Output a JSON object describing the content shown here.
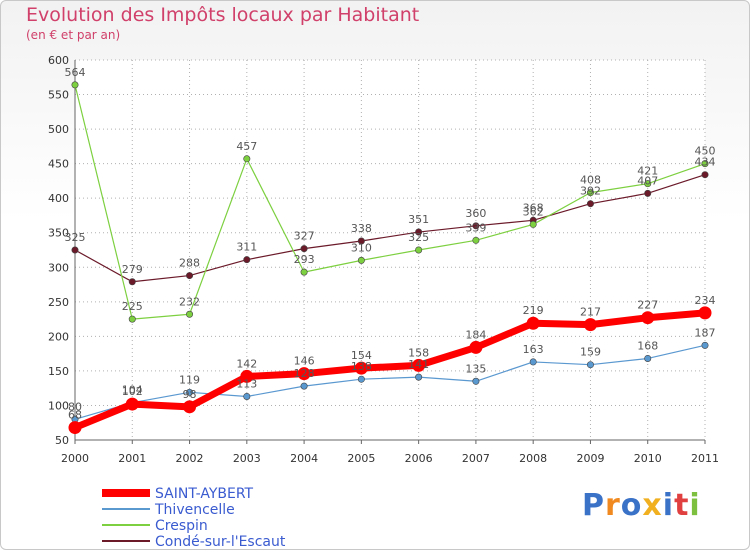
{
  "chart_data": {
    "type": "line",
    "title": "Evolution des Impôts locaux par Habitant",
    "subtitle": "(en € et par an)",
    "x": [
      "2000",
      "2001",
      "2002",
      "2003",
      "2004",
      "2005",
      "2006",
      "2007",
      "2008",
      "2009",
      "2010",
      "2011"
    ],
    "ylim": [
      50,
      600
    ],
    "yticks": [
      50,
      100,
      150,
      200,
      250,
      300,
      350,
      400,
      450,
      500,
      550,
      600
    ],
    "grid": true,
    "legend_position": "bottom-left",
    "series": [
      {
        "name": "Condé-sur-l'Escaut",
        "color": "#6b1a2a",
        "values": [
          325,
          279,
          288,
          311,
          327,
          338,
          351,
          360,
          368,
          392,
          407,
          434
        ],
        "labels": [
          "325",
          "279",
          "288",
          "311",
          "327",
          "338",
          "351",
          "360",
          "368",
          "392",
          "407",
          "434"
        ],
        "label_pos": "above",
        "width": 1.2
      },
      {
        "name": "Crespin",
        "color": "#7dd040",
        "values": [
          564,
          225,
          232,
          457,
          293,
          310,
          325,
          339,
          362,
          408,
          421,
          450
        ],
        "labels": [
          "564",
          "225",
          "232",
          "457",
          "293",
          "310",
          "325",
          "339",
          "362",
          "408",
          "421",
          "450"
        ],
        "label_pos": "above",
        "width": 1.2
      },
      {
        "name": "Thivencelle",
        "color": "#5a98d0",
        "values": [
          80,
          104,
          119,
          113,
          128,
          138,
          141,
          135,
          163,
          159,
          168,
          187
        ],
        "labels": [
          "80",
          "104",
          "119",
          "113",
          "128",
          "138",
          "141",
          "135",
          "163",
          "159",
          "168",
          "187"
        ],
        "label_pos": "above",
        "width": 1.2
      },
      {
        "name": "SAINT-AYBERT",
        "color": "#ff0000",
        "values": [
          68,
          102,
          98,
          142,
          146,
          154,
          158,
          184,
          219,
          217,
          227,
          234
        ],
        "labels": [
          "68",
          "102",
          "98",
          "142",
          "146",
          "154",
          "158",
          "184",
          "219",
          "217",
          "227",
          "234"
        ],
        "label_pos": "above",
        "width": 7
      }
    ],
    "legend_order": [
      "SAINT-AYBERT",
      "Thivencelle",
      "Crespin",
      "Condé-sur-l'Escaut"
    ]
  },
  "logo": {
    "text": "Proxiti",
    "colors": [
      "#3a72c8",
      "#f08a20",
      "#3a72c8",
      "#f0b020",
      "#3a72c8",
      "#e04040",
      "#7dc040"
    ]
  }
}
